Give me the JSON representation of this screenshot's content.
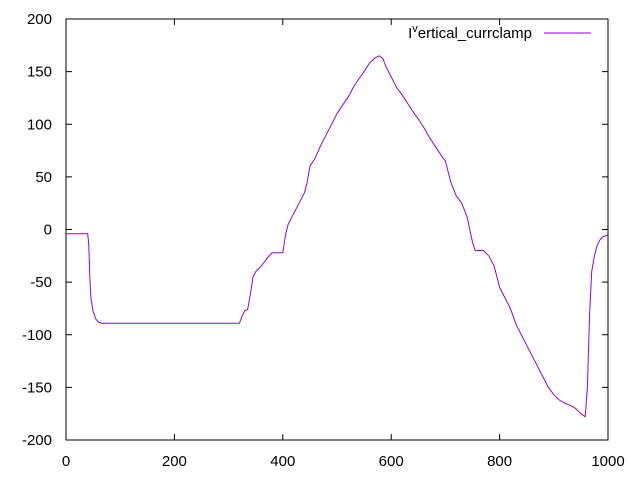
{
  "chart_data": {
    "type": "line",
    "title": "",
    "xlabel": "",
    "ylabel": "",
    "xlim": [
      0,
      1000
    ],
    "ylim": [
      -200,
      200
    ],
    "x_ticks": [
      0,
      200,
      400,
      600,
      800,
      1000
    ],
    "y_ticks": [
      -200,
      -150,
      -100,
      -50,
      0,
      50,
      100,
      150,
      200
    ],
    "x_tick_labels": [
      "0",
      "200",
      "400",
      "600",
      "800",
      "1000"
    ],
    "y_tick_labels": [
      "-200",
      "-150",
      "-100",
      "-50",
      "0",
      "50",
      "100",
      "150",
      "200"
    ],
    "grid": false,
    "legend_position": "top-right",
    "series": [
      {
        "name": "I^vertical_currclamp",
        "name_main": "I",
        "name_sup": "v",
        "name_rest": "ertical_currclamp",
        "color": "#9400d3",
        "points": [
          [
            0,
            -4
          ],
          [
            40,
            -4
          ],
          [
            42,
            -15
          ],
          [
            44,
            -45
          ],
          [
            46,
            -65
          ],
          [
            50,
            -78
          ],
          [
            55,
            -85
          ],
          [
            60,
            -88
          ],
          [
            65,
            -89
          ],
          [
            100,
            -89
          ],
          [
            150,
            -89
          ],
          [
            200,
            -89
          ],
          [
            250,
            -89
          ],
          [
            300,
            -89
          ],
          [
            320,
            -89
          ],
          [
            325,
            -82
          ],
          [
            330,
            -77
          ],
          [
            335,
            -76
          ],
          [
            340,
            -62
          ],
          [
            345,
            -45
          ],
          [
            350,
            -40
          ],
          [
            360,
            -35
          ],
          [
            370,
            -28
          ],
          [
            380,
            -22
          ],
          [
            400,
            -22
          ],
          [
            405,
            -5
          ],
          [
            410,
            5
          ],
          [
            420,
            15
          ],
          [
            430,
            25
          ],
          [
            440,
            35
          ],
          [
            445,
            45
          ],
          [
            450,
            60
          ],
          [
            460,
            68
          ],
          [
            470,
            80
          ],
          [
            480,
            90
          ],
          [
            490,
            100
          ],
          [
            500,
            110
          ],
          [
            510,
            118
          ],
          [
            520,
            125
          ],
          [
            530,
            135
          ],
          [
            540,
            143
          ],
          [
            550,
            150
          ],
          [
            560,
            158
          ],
          [
            570,
            163
          ],
          [
            578,
            165
          ],
          [
            585,
            162
          ],
          [
            590,
            155
          ],
          [
            600,
            145
          ],
          [
            610,
            135
          ],
          [
            620,
            128
          ],
          [
            630,
            120
          ],
          [
            640,
            112
          ],
          [
            650,
            105
          ],
          [
            660,
            97
          ],
          [
            670,
            88
          ],
          [
            680,
            80
          ],
          [
            690,
            72
          ],
          [
            700,
            65
          ],
          [
            705,
            55
          ],
          [
            710,
            45
          ],
          [
            720,
            32
          ],
          [
            730,
            25
          ],
          [
            740,
            12
          ],
          [
            745,
            0
          ],
          [
            750,
            -12
          ],
          [
            755,
            -20
          ],
          [
            770,
            -20
          ],
          [
            780,
            -25
          ],
          [
            790,
            -35
          ],
          [
            800,
            -55
          ],
          [
            810,
            -65
          ],
          [
            820,
            -75
          ],
          [
            830,
            -90
          ],
          [
            840,
            -100
          ],
          [
            850,
            -110
          ],
          [
            860,
            -120
          ],
          [
            870,
            -130
          ],
          [
            880,
            -140
          ],
          [
            890,
            -150
          ],
          [
            900,
            -157
          ],
          [
            910,
            -162
          ],
          [
            920,
            -165
          ],
          [
            930,
            -167
          ],
          [
            940,
            -170
          ],
          [
            950,
            -175
          ],
          [
            958,
            -178
          ],
          [
            962,
            -150
          ],
          [
            966,
            -80
          ],
          [
            970,
            -40
          ],
          [
            975,
            -25
          ],
          [
            980,
            -15
          ],
          [
            985,
            -10
          ],
          [
            990,
            -7
          ],
          [
            1000,
            -5
          ]
        ]
      }
    ]
  }
}
